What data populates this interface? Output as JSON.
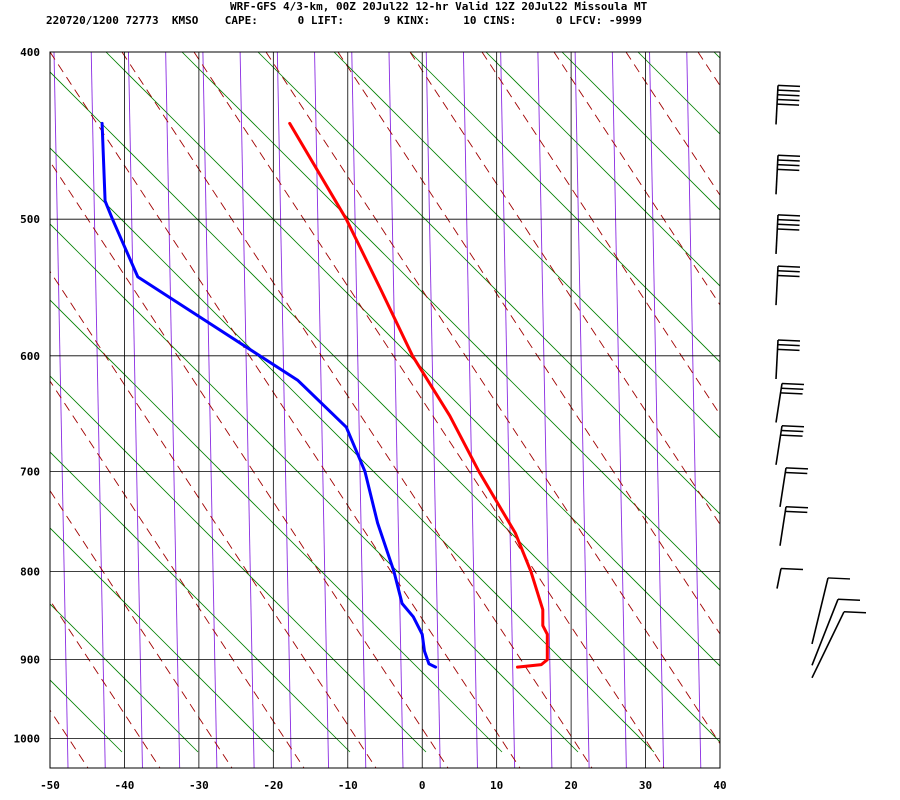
{
  "header": {
    "title": "WRF-GFS 4/3-km, 00Z 20Jul22 12-hr Valid 12Z 20Jul22 Missoula MT",
    "stats": "220720/1200 72773  KMSO    CAPE:      0 LIFT:      9 KINX:     10 CINS:      0 LFCV: -9999"
  },
  "colors": {
    "temperature": "#ff0000",
    "dewpoint": "#0000ff",
    "dry_adiabat": "#008000",
    "moist_adiabat": "#a00000",
    "isotherm_background": "#8a2be2",
    "grid": "#000000",
    "wind_barb": "#000000"
  },
  "chart_data": {
    "type": "line",
    "subtype": "skew-t log-p sounding",
    "xlim": [
      -50,
      40
    ],
    "x_ticks": [
      -50,
      -40,
      -30,
      -20,
      -10,
      0,
      10,
      20,
      30,
      40
    ],
    "ylim": [
      1040,
      400
    ],
    "y_scale": "log pressure (inverted)",
    "y_ticks": [
      400,
      500,
      600,
      700,
      800,
      900,
      1000
    ],
    "grid": true,
    "series": [
      {
        "key": "temperature",
        "points": [
          {
            "p": 909,
            "x": 12.8
          },
          {
            "p": 906,
            "x": 16.0
          },
          {
            "p": 900,
            "x": 16.8
          },
          {
            "p": 885,
            "x": 16.8
          },
          {
            "p": 870,
            "x": 16.8
          },
          {
            "p": 860,
            "x": 16.2
          },
          {
            "p": 842,
            "x": 16.2
          },
          {
            "p": 800,
            "x": 14.6
          },
          {
            "p": 760,
            "x": 12.5
          },
          {
            "p": 700,
            "x": 7.6
          },
          {
            "p": 650,
            "x": 3.7
          },
          {
            "p": 600,
            "x": -1.3
          },
          {
            "p": 550,
            "x": -5.5
          },
          {
            "p": 500,
            "x": -10.2
          },
          {
            "p": 440,
            "x": -17.8
          }
        ]
      },
      {
        "key": "dewpoint",
        "points": [
          {
            "p": 909,
            "x": 1.8
          },
          {
            "p": 905,
            "x": 0.9
          },
          {
            "p": 890,
            "x": 0.3
          },
          {
            "p": 870,
            "x": 0.0
          },
          {
            "p": 850,
            "x": -1.2
          },
          {
            "p": 835,
            "x": -2.7
          },
          {
            "p": 800,
            "x": -3.8
          },
          {
            "p": 750,
            "x": -6.0
          },
          {
            "p": 700,
            "x": -7.7
          },
          {
            "p": 660,
            "x": -10.2
          },
          {
            "p": 620,
            "x": -16.7
          },
          {
            "p": 570,
            "x": -29.8
          },
          {
            "p": 540,
            "x": -38.2
          },
          {
            "p": 500,
            "x": -41.6
          },
          {
            "p": 488,
            "x": -42.6
          },
          {
            "p": 440,
            "x": -43.0
          }
        ]
      }
    ],
    "wind_barbs": [
      {
        "p": 440,
        "speed_kt": 45
      },
      {
        "p": 483,
        "speed_kt": 40
      },
      {
        "p": 523,
        "speed_kt": 35
      },
      {
        "p": 560,
        "speed_kt": 30
      },
      {
        "p": 618,
        "speed_kt": 30
      },
      {
        "p": 655,
        "speed_kt": 25
      },
      {
        "p": 693,
        "speed_kt": 25
      },
      {
        "p": 733,
        "speed_kt": 20
      },
      {
        "p": 772,
        "speed_kt": 20
      },
      {
        "p": 812,
        "speed_kt": 10
      },
      {
        "p": 865,
        "speed_kt": 10
      },
      {
        "p": 890,
        "speed_kt": 10
      },
      {
        "p": 905,
        "speed_kt": 10
      }
    ]
  }
}
